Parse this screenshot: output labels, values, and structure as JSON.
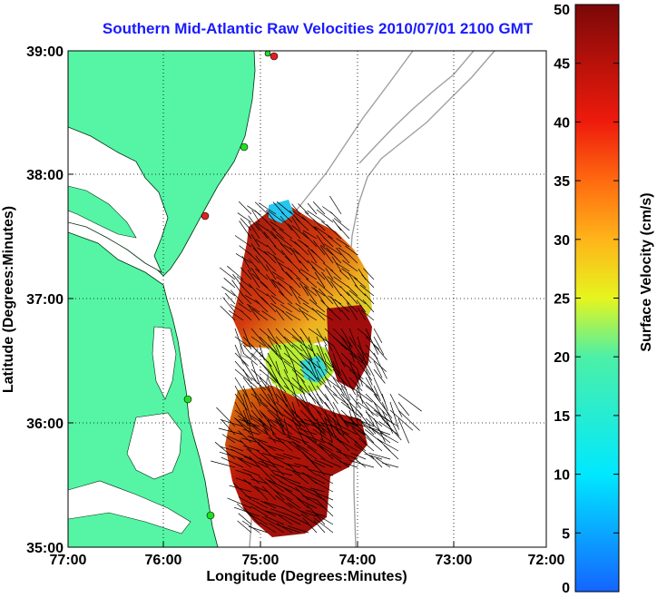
{
  "title": "Southern Mid-Atlantic Raw Velocities 2010/07/01 2100 GMT",
  "x_axis": {
    "label": "Longitude (Degrees:Minutes)",
    "ticks": [
      "77:00",
      "76:00",
      "75:00",
      "74:00",
      "73:00",
      "72:00"
    ]
  },
  "y_axis": {
    "label": "Latitude (Degrees:Minutes)",
    "ticks": [
      "39:00",
      "38:00",
      "37:00",
      "36:00",
      "35:00"
    ]
  },
  "colorbar": {
    "label": "Surface Velocity (cm/s)",
    "ticks": [
      "50",
      "45",
      "40",
      "35",
      "30",
      "25",
      "20",
      "15",
      "10",
      "5",
      "0"
    ],
    "min": 0,
    "max": 50
  },
  "colors": {
    "land": "#55f5a5",
    "title": "#1a1aff",
    "coast": "#002a10",
    "bathymetry": "#a0a0a0",
    "vectors": "#000000",
    "station_green": "#22dd22",
    "station_red": "#dd2222"
  },
  "map_extent": {
    "lon_west": -77,
    "lon_east": -72,
    "lat_south": 35,
    "lat_north": 39
  },
  "grid": true
}
